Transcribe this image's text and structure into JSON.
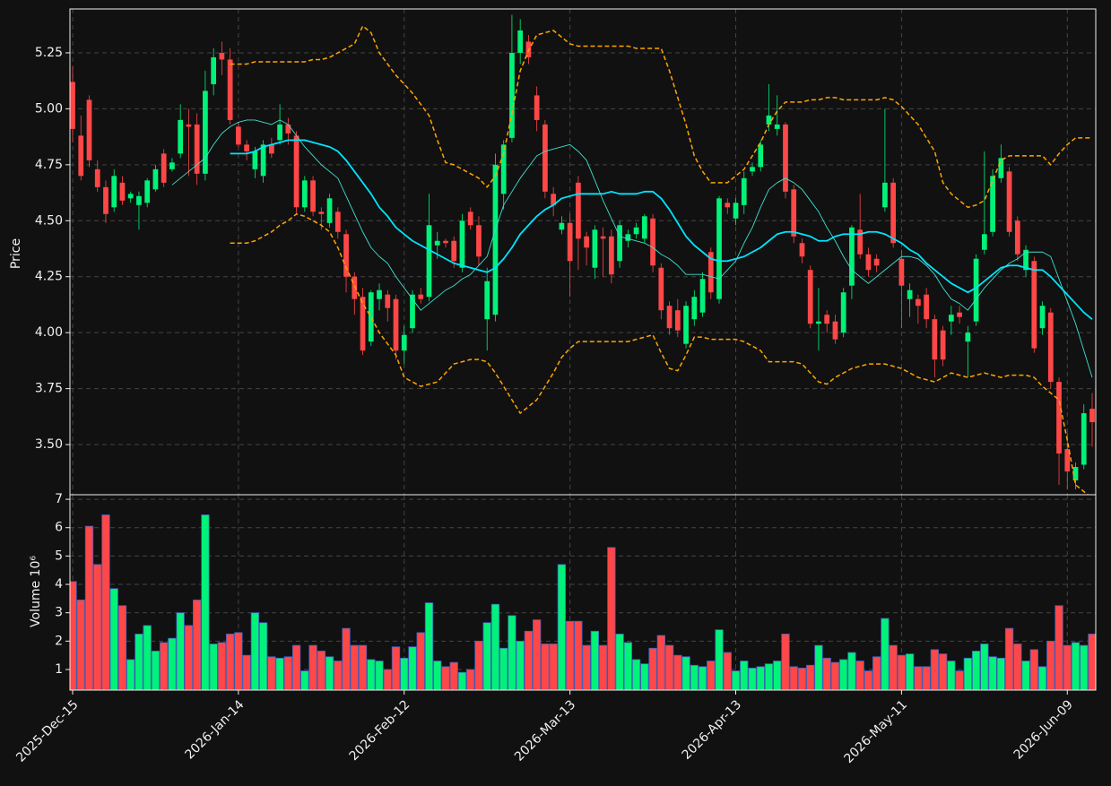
{
  "chart_data": {
    "type": "candlestick",
    "categories": [
      "2025-Dec-15",
      null,
      null,
      null,
      null,
      null,
      null,
      null,
      null,
      null,
      null,
      null,
      null,
      null,
      null,
      null,
      null,
      null,
      null,
      null,
      "2026-Jan-14",
      null,
      null,
      null,
      null,
      null,
      null,
      null,
      null,
      null,
      null,
      null,
      null,
      null,
      null,
      null,
      null,
      null,
      null,
      null,
      "2026-Feb-12",
      null,
      null,
      null,
      null,
      null,
      null,
      null,
      null,
      null,
      null,
      null,
      null,
      null,
      null,
      null,
      null,
      null,
      null,
      null,
      "2026-Mar-13",
      null,
      null,
      null,
      null,
      null,
      null,
      null,
      null,
      null,
      null,
      null,
      null,
      null,
      null,
      null,
      null,
      null,
      null,
      null,
      "2026-Apr-13",
      null,
      null,
      null,
      null,
      null,
      null,
      null,
      null,
      null,
      null,
      null,
      null,
      null,
      null,
      null,
      null,
      null,
      null,
      null,
      "2026-May-11",
      null,
      null,
      null,
      null,
      null,
      null,
      null,
      null,
      null,
      null,
      null,
      null,
      null,
      null,
      null,
      null,
      null,
      null,
      null,
      "2026-Jun-09",
      null,
      null,
      null
    ],
    "ylabel": "Price",
    "ylim": [
      3.276,
      5.446
    ],
    "yticks": [
      {
        "value": 3.5,
        "label": "3.50"
      },
      {
        "value": 3.75,
        "label": "3.75"
      },
      {
        "value": 4,
        "label": "4.00"
      },
      {
        "value": 4.25,
        "label": "4.25"
      },
      {
        "value": 4.5,
        "label": "4.50"
      },
      {
        "value": 4.75,
        "label": "4.75"
      },
      {
        "value": 5,
        "label": "5.00"
      },
      {
        "value": 5.25,
        "label": "5.25"
      }
    ],
    "grid": true,
    "up_color": "#00f279",
    "down_color": "#ff4747",
    "open": [
      5.12,
      4.88,
      5.04,
      4.73,
      4.65,
      4.56,
      4.67,
      4.6,
      4.57,
      4.58,
      4.64,
      4.8,
      4.73,
      4.8,
      4.93,
      4.93,
      4.71,
      5.11,
      5.25,
      5.22,
      4.92,
      4.84,
      4.73,
      4.7,
      4.84,
      4.86,
      4.93,
      4.88,
      4.56,
      4.68,
      4.54,
      4.49,
      4.54,
      4.44,
      4.25,
      4.16,
      3.96,
      4.15,
      4.17,
      4.15,
      3.92,
      4.02,
      4.17,
      4.16,
      4.39,
      4.41,
      4.41,
      4.29,
      4.54,
      4.48,
      4.06,
      4.08,
      4.62,
      4.87,
      5.25,
      5.3,
      5.06,
      4.93,
      4.62,
      4.46,
      4.49,
      4.67,
      4.43,
      4.29,
      4.43,
      4.43,
      4.32,
      4.41,
      4.44,
      4.42,
      4.51,
      4.29,
      4.12,
      4.1,
      3.95,
      4.06,
      4.09,
      4.36,
      4.15,
      4.58,
      4.51,
      4.57,
      4.72,
      4.74,
      4.93,
      4.91,
      4.93,
      4.64,
      4.4,
      4.28,
      4.04,
      4.08,
      4.05,
      4.0,
      4.21,
      4.46,
      4.35,
      4.33,
      4.56,
      4.67,
      4.33,
      4.15,
      4.15,
      4.17,
      4.06,
      4.01,
      4.05,
      4.09,
      3.96,
      4.05,
      4.37,
      4.45,
      4.69,
      4.72,
      4.5,
      4.28,
      4.32,
      4.02,
      4.09,
      3.78,
      3.48,
      3.34,
      3.41,
      3.66
    ],
    "high": [
      5.19,
      4.97,
      5.06,
      4.77,
      4.68,
      4.73,
      4.7,
      4.63,
      4.63,
      4.69,
      4.75,
      4.82,
      4.78,
      5.02,
      5.0,
      4.98,
      5.17,
      5.27,
      5.3,
      5.27,
      4.94,
      4.86,
      4.83,
      4.86,
      4.87,
      5.02,
      4.96,
      4.9,
      4.7,
      4.7,
      4.56,
      4.62,
      4.56,
      4.46,
      4.27,
      4.2,
      4.19,
      4.22,
      4.19,
      4.17,
      4.03,
      4.19,
      4.2,
      4.62,
      4.45,
      4.42,
      4.43,
      4.53,
      4.56,
      4.52,
      4.29,
      4.8,
      4.86,
      5.42,
      5.4,
      5.33,
      5.1,
      4.95,
      4.65,
      4.52,
      4.53,
      4.7,
      4.45,
      4.48,
      4.47,
      4.46,
      4.5,
      4.46,
      4.49,
      4.53,
      4.53,
      4.31,
      4.14,
      4.15,
      4.14,
      4.19,
      4.27,
      4.38,
      4.61,
      4.6,
      4.6,
      4.72,
      4.76,
      4.86,
      5.11,
      5.06,
      4.94,
      4.66,
      4.42,
      4.3,
      4.2,
      4.1,
      4.08,
      4.2,
      4.48,
      4.62,
      4.38,
      4.35,
      5.0,
      4.69,
      4.37,
      4.22,
      4.17,
      4.2,
      4.08,
      4.03,
      4.12,
      4.12,
      4.03,
      4.35,
      4.81,
      4.73,
      4.84,
      4.74,
      4.52,
      4.39,
      4.34,
      4.14,
      4.11,
      3.8,
      3.55,
      3.42,
      3.68,
      3.73
    ],
    "low": [
      4.85,
      4.68,
      4.74,
      4.63,
      4.49,
      4.54,
      4.57,
      4.58,
      4.46,
      4.56,
      4.63,
      4.65,
      4.72,
      4.78,
      4.7,
      4.66,
      4.68,
      5.06,
      5.15,
      4.93,
      4.83,
      4.77,
      4.69,
      4.67,
      4.78,
      4.84,
      4.84,
      4.53,
      4.54,
      4.52,
      4.46,
      4.47,
      4.42,
      4.18,
      4.08,
      3.9,
      3.94,
      4.1,
      4.05,
      3.88,
      3.86,
      4.0,
      4.13,
      4.14,
      4.33,
      4.38,
      4.29,
      4.27,
      4.46,
      4.3,
      3.92,
      4.05,
      4.55,
      4.85,
      5.2,
      5.2,
      4.9,
      4.6,
      4.52,
      4.44,
      4.16,
      4.28,
      4.3,
      4.24,
      4.25,
      4.22,
      4.29,
      4.38,
      4.42,
      4.4,
      4.27,
      4.06,
      3.99,
      3.98,
      3.93,
      4.03,
      4.07,
      4.15,
      4.13,
      4.53,
      4.48,
      4.53,
      4.7,
      4.72,
      4.9,
      4.88,
      4.6,
      4.4,
      4.31,
      4.02,
      3.92,
      4.0,
      3.95,
      3.98,
      4.15,
      4.33,
      4.25,
      4.27,
      4.54,
      4.38,
      4.02,
      4.07,
      4.04,
      4.02,
      3.8,
      3.85,
      3.99,
      4.04,
      3.8,
      4.03,
      4.35,
      4.43,
      4.67,
      4.43,
      4.32,
      4.25,
      3.91,
      3.99,
      3.75,
      3.32,
      3.3,
      3.3,
      3.39,
      3.49
    ],
    "close": [
      4.91,
      4.7,
      4.77,
      4.65,
      4.53,
      4.7,
      4.59,
      4.62,
      4.61,
      4.68,
      4.73,
      4.67,
      4.76,
      4.95,
      4.92,
      4.71,
      5.08,
      5.23,
      5.22,
      4.95,
      4.84,
      4.81,
      4.81,
      4.84,
      4.8,
      4.93,
      4.89,
      4.56,
      4.68,
      4.54,
      4.53,
      4.6,
      4.45,
      4.25,
      4.15,
      3.92,
      4.18,
      4.19,
      4.11,
      3.92,
      3.99,
      4.17,
      4.15,
      4.48,
      4.41,
      4.4,
      4.32,
      4.5,
      4.48,
      4.34,
      4.23,
      4.75,
      4.84,
      5.25,
      5.35,
      5.23,
      4.95,
      4.63,
      4.57,
      4.49,
      4.32,
      4.42,
      4.38,
      4.46,
      4.42,
      4.26,
      4.48,
      4.44,
      4.47,
      4.52,
      4.3,
      4.1,
      4.02,
      4.01,
      4.12,
      4.16,
      4.24,
      4.18,
      4.6,
      4.56,
      4.58,
      4.69,
      4.74,
      4.84,
      4.97,
      4.93,
      4.63,
      4.43,
      4.34,
      4.04,
      4.05,
      4.04,
      3.97,
      4.18,
      4.47,
      4.35,
      4.28,
      4.3,
      4.67,
      4.4,
      4.21,
      4.19,
      4.12,
      4.06,
      3.88,
      3.88,
      4.08,
      4.07,
      4.0,
      4.33,
      4.44,
      4.7,
      4.78,
      4.45,
      4.35,
      4.37,
      3.93,
      4.12,
      3.78,
      3.46,
      3.38,
      3.4,
      3.64,
      3.6
    ],
    "overlays": [
      {
        "color": "#00e5ff",
        "width": 1.8,
        "dash": false,
        "values": [
          null,
          null,
          null,
          null,
          null,
          null,
          null,
          null,
          null,
          null,
          null,
          null,
          null,
          null,
          null,
          null,
          null,
          null,
          null,
          4.8,
          4.8,
          4.8,
          4.81,
          4.83,
          4.84,
          4.85,
          4.86,
          4.86,
          4.86,
          4.85,
          4.84,
          4.83,
          4.81,
          4.77,
          4.72,
          4.67,
          4.62,
          4.56,
          4.52,
          4.47,
          4.44,
          4.41,
          4.39,
          4.37,
          4.35,
          4.33,
          4.31,
          4.3,
          4.29,
          4.28,
          4.27,
          4.29,
          4.33,
          4.38,
          4.44,
          4.48,
          4.52,
          4.55,
          4.57,
          4.6,
          4.61,
          4.62,
          4.62,
          4.62,
          4.62,
          4.63,
          4.62,
          4.62,
          4.62,
          4.63,
          4.63,
          4.6,
          4.55,
          4.49,
          4.43,
          4.39,
          4.36,
          4.33,
          4.32,
          4.32,
          4.33,
          4.34,
          4.36,
          4.38,
          4.41,
          4.44,
          4.45,
          4.45,
          4.44,
          4.43,
          4.41,
          4.41,
          4.43,
          4.44,
          4.44,
          4.44,
          4.45,
          4.45,
          4.44,
          4.42,
          4.4,
          4.37,
          4.35,
          4.31,
          4.28,
          4.25,
          4.22,
          4.2,
          4.18,
          4.2,
          4.23,
          4.26,
          4.29,
          4.3,
          4.3,
          4.29,
          4.28,
          4.28,
          4.25,
          4.21,
          4.17,
          4.13,
          4.09,
          4.06
        ]
      },
      {
        "color": "#40e0d0",
        "width": 0.9,
        "dash": false,
        "values": [
          null,
          null,
          null,
          null,
          null,
          null,
          null,
          null,
          null,
          null,
          null,
          null,
          4.66,
          4.69,
          4.72,
          4.75,
          4.78,
          4.84,
          4.89,
          4.92,
          4.94,
          4.95,
          4.95,
          4.94,
          4.93,
          4.95,
          4.93,
          4.88,
          4.83,
          4.79,
          4.75,
          4.72,
          4.69,
          4.61,
          4.53,
          4.45,
          4.38,
          4.34,
          4.31,
          4.25,
          4.2,
          4.15,
          4.1,
          4.13,
          4.16,
          4.19,
          4.21,
          4.24,
          4.26,
          4.3,
          4.34,
          4.46,
          4.57,
          4.63,
          4.69,
          4.74,
          4.79,
          4.81,
          4.82,
          4.83,
          4.84,
          4.81,
          4.77,
          4.68,
          4.59,
          4.51,
          4.43,
          4.42,
          4.41,
          4.4,
          4.38,
          4.35,
          4.33,
          4.3,
          4.26,
          4.26,
          4.26,
          4.25,
          4.24,
          4.28,
          4.32,
          4.4,
          4.47,
          4.56,
          4.64,
          4.67,
          4.69,
          4.67,
          4.64,
          4.59,
          4.54,
          4.47,
          4.41,
          4.34,
          4.28,
          4.25,
          4.22,
          4.25,
          4.28,
          4.31,
          4.34,
          4.34,
          4.33,
          4.3,
          4.26,
          4.2,
          4.15,
          4.13,
          4.1,
          4.15,
          4.2,
          4.24,
          4.28,
          4.31,
          4.33,
          4.36,
          4.36,
          4.36,
          4.34,
          4.24,
          4.14,
          4.04,
          3.92,
          3.8
        ]
      },
      {
        "color": "#ffa500",
        "width": 1.5,
        "dash": true,
        "values": [
          null,
          null,
          null,
          null,
          null,
          null,
          null,
          null,
          null,
          null,
          null,
          null,
          null,
          null,
          null,
          null,
          null,
          null,
          null,
          5.2,
          5.2,
          5.2,
          5.21,
          5.21,
          5.21,
          5.21,
          5.21,
          5.21,
          5.21,
          5.22,
          5.22,
          5.23,
          5.25,
          5.27,
          5.29,
          5.37,
          5.34,
          5.25,
          5.2,
          5.15,
          5.11,
          5.07,
          5.02,
          4.97,
          4.86,
          4.76,
          4.75,
          4.73,
          4.71,
          4.69,
          4.65,
          4.7,
          4.8,
          4.98,
          5.17,
          5.26,
          5.33,
          5.34,
          5.35,
          5.32,
          5.29,
          5.28,
          5.28,
          5.28,
          5.28,
          5.28,
          5.28,
          5.28,
          5.27,
          5.27,
          5.27,
          5.27,
          5.17,
          5.05,
          4.93,
          4.79,
          4.72,
          4.67,
          4.67,
          4.67,
          4.7,
          4.73,
          4.79,
          4.85,
          4.93,
          4.99,
          5.03,
          5.03,
          5.03,
          5.04,
          5.04,
          5.05,
          5.05,
          5.04,
          5.04,
          5.04,
          5.04,
          5.04,
          5.05,
          5.04,
          5.01,
          4.97,
          4.93,
          4.87,
          4.81,
          4.67,
          4.62,
          4.59,
          4.56,
          4.57,
          4.59,
          4.68,
          4.77,
          4.79,
          4.79,
          4.79,
          4.79,
          4.79,
          4.75,
          4.8,
          4.84,
          4.87,
          4.87,
          4.87
        ]
      },
      {
        "color": "#ffa500",
        "width": 1.5,
        "dash": true,
        "values": [
          null,
          null,
          null,
          null,
          null,
          null,
          null,
          null,
          null,
          null,
          null,
          null,
          null,
          null,
          null,
          null,
          null,
          null,
          null,
          4.4,
          4.4,
          4.4,
          4.41,
          4.43,
          4.45,
          4.48,
          4.5,
          4.53,
          4.52,
          4.5,
          4.48,
          4.45,
          4.38,
          4.29,
          4.21,
          4.13,
          4.07,
          4.0,
          3.95,
          3.9,
          3.8,
          3.78,
          3.76,
          3.77,
          3.78,
          3.82,
          3.86,
          3.87,
          3.88,
          3.88,
          3.87,
          3.82,
          3.76,
          3.7,
          3.64,
          3.67,
          3.7,
          3.76,
          3.82,
          3.89,
          3.93,
          3.96,
          3.96,
          3.96,
          3.96,
          3.96,
          3.96,
          3.96,
          3.97,
          3.98,
          3.99,
          3.91,
          3.84,
          3.83,
          3.9,
          3.98,
          3.98,
          3.97,
          3.97,
          3.97,
          3.97,
          3.96,
          3.94,
          3.92,
          3.87,
          3.87,
          3.87,
          3.87,
          3.86,
          3.82,
          3.78,
          3.77,
          3.8,
          3.82,
          3.84,
          3.85,
          3.86,
          3.86,
          3.86,
          3.85,
          3.84,
          3.82,
          3.8,
          3.79,
          3.78,
          3.8,
          3.82,
          3.81,
          3.8,
          3.81,
          3.82,
          3.81,
          3.8,
          3.81,
          3.81,
          3.81,
          3.8,
          3.76,
          3.73,
          3.7,
          3.52,
          3.32,
          3.29,
          3.26
        ]
      }
    ],
    "volume": {
      "ylabel": "Volume  10⁶",
      "ylim": [
        0.274,
        7.16
      ],
      "yticks": [
        1,
        2,
        3,
        4,
        5,
        6,
        7
      ],
      "edge_color": "#4060c0",
      "values": [
        4.1,
        3.45,
        6.05,
        4.7,
        6.45,
        3.85,
        3.25,
        1.35,
        2.25,
        2.55,
        1.65,
        1.95,
        2.1,
        3.0,
        2.55,
        3.45,
        6.45,
        1.9,
        1.95,
        2.25,
        2.3,
        1.5,
        3.0,
        2.65,
        1.45,
        1.4,
        1.45,
        1.85,
        0.95,
        1.85,
        1.65,
        1.45,
        1.3,
        2.45,
        1.85,
        1.85,
        1.35,
        1.3,
        1.0,
        1.8,
        1.4,
        1.8,
        2.3,
        3.35,
        1.3,
        1.1,
        1.25,
        0.9,
        1.0,
        2.0,
        2.65,
        3.3,
        1.75,
        2.9,
        2.0,
        2.35,
        2.75,
        1.9,
        1.9,
        4.7,
        2.7,
        2.7,
        1.85,
        2.35,
        1.85,
        5.3,
        2.25,
        1.95,
        1.35,
        1.2,
        1.75,
        2.2,
        1.85,
        1.5,
        1.45,
        1.15,
        1.1,
        1.3,
        2.4,
        1.6,
        0.95,
        1.3,
        1.05,
        1.1,
        1.2,
        1.3,
        2.25,
        1.1,
        1.05,
        1.15,
        1.85,
        1.4,
        1.25,
        1.35,
        1.6,
        1.3,
        0.95,
        1.45,
        2.8,
        1.85,
        1.5,
        1.55,
        1.1,
        1.1,
        1.7,
        1.55,
        1.3,
        0.95,
        1.4,
        1.65,
        1.9,
        1.45,
        1.4,
        2.45,
        1.9,
        1.3,
        1.7,
        1.1,
        2.0,
        3.25,
        1.85,
        1.95,
        1.85,
        2.25
      ]
    }
  }
}
